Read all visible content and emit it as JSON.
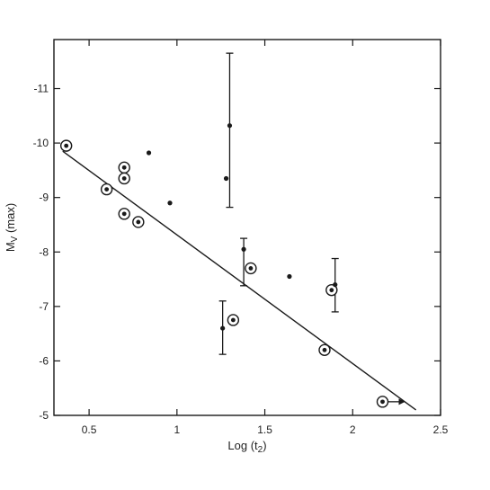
{
  "chart_data": {
    "type": "scatter",
    "title": "",
    "xlabel": "Log (t",
    "xlabel_sub": "2",
    "xlabel_end": ")",
    "ylabel": "M",
    "ylabel_sub": "V",
    "ylabel_end": " (max)",
    "xlim": [
      0.3,
      2.5
    ],
    "ylim": [
      -5,
      -11.9
    ],
    "y_axis_inverted": true,
    "x_ticks": [
      "0.5",
      "1",
      "1.5",
      "2",
      "2.5"
    ],
    "x_tick_values": [
      0.5,
      1,
      1.5,
      2,
      2.5
    ],
    "y_ticks": [
      "-5",
      "-6",
      "-7",
      "-8",
      "-9",
      "-10",
      "-11"
    ],
    "y_tick_values": [
      -5,
      -6,
      -7,
      -8,
      -9,
      -10,
      -11
    ],
    "grid": false,
    "series": [
      {
        "marker": "circled-dot",
        "points": [
          {
            "x": 0.37,
            "y": -9.95
          },
          {
            "x": 0.6,
            "y": -9.15
          },
          {
            "x": 0.7,
            "y": -9.55
          },
          {
            "x": 0.7,
            "y": -9.35
          },
          {
            "x": 0.7,
            "y": -8.7
          },
          {
            "x": 0.78,
            "y": -8.55
          },
          {
            "x": 1.32,
            "y": -6.75
          },
          {
            "x": 1.42,
            "y": -7.7
          },
          {
            "x": 1.84,
            "y": -6.2
          },
          {
            "x": 1.88,
            "y": -7.3
          },
          {
            "x": 2.17,
            "y": -5.25,
            "lower_limit_arrow": true
          }
        ]
      },
      {
        "marker": "dot",
        "points": [
          {
            "x": 0.84,
            "y": -9.82
          },
          {
            "x": 0.96,
            "y": -8.9
          },
          {
            "x": 1.28,
            "y": -9.35
          },
          {
            "x": 1.3,
            "y": -10.32,
            "err_low": -8.82,
            "err_high": -11.65
          },
          {
            "x": 1.26,
            "y": -6.6,
            "err_low": -6.12,
            "err_high": -7.1
          },
          {
            "x": 1.38,
            "y": -8.05,
            "err_low": -7.38,
            "err_high": -8.25
          },
          {
            "x": 1.64,
            "y": -7.55
          },
          {
            "x": 1.9,
            "y": -7.4,
            "err_low": -6.9,
            "err_high": -7.88
          }
        ]
      }
    ],
    "fit_line": {
      "x": [
        0.35,
        2.36
      ],
      "y": [
        -9.85,
        -5.1
      ]
    },
    "colors": {
      "ink": "#1a1a1a",
      "background": "#ffffff"
    }
  }
}
